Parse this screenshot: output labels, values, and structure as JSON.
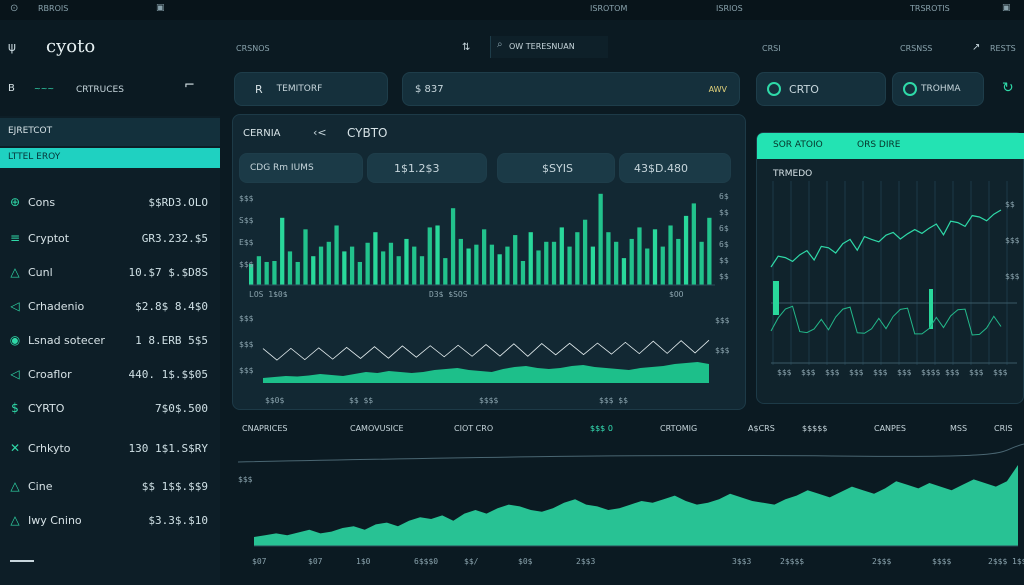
{
  "topbar": {
    "left_text": "RBROIS",
    "center_text": "ISROTOM",
    "center2_text": "ISRIOS",
    "right_text": "TRSROTIS"
  },
  "header": {
    "logo": "cyoto",
    "nav1": "CRSNOS",
    "search_text": "OW TERESNUAN",
    "right1": "CRSI",
    "right2": "CRSNSS",
    "right3": "RESTS"
  },
  "row2": {
    "pill1_label": "CRTRUCES",
    "pill2_label": "TEMITORF",
    "pill3_label": "$ 837",
    "pill3_right": "AWV",
    "pill4_label": "CRTO",
    "pill5_label": "TROHMA"
  },
  "sidebar": {
    "title": "EJRETCOT",
    "active_label": "LTTEL EROY",
    "items": [
      {
        "label": "Cons",
        "value": "$$RD3.OLO",
        "icon": "planet-icon"
      },
      {
        "label": "Cryptot",
        "value": "GR3.232.$5",
        "icon": "bars-icon"
      },
      {
        "label": "Cunl",
        "value": "10.$7 $.$D8S",
        "icon": "triangle-icon"
      },
      {
        "label": "Crhadenio",
        "value": "$2.8$ 8.4$0",
        "icon": "arrow-icon"
      },
      {
        "label": "Lsnad sotecer",
        "value": "1 8.ERB 5$5",
        "icon": "circle-icon"
      },
      {
        "label": "Croaflor",
        "value": "440. 1$.$$05",
        "icon": "arrow-icon"
      },
      {
        "label": "CYRTO",
        "value": "7$0$.500",
        "icon": "dollar-icon"
      },
      {
        "label": "Crhkyto",
        "value": "130 1$1.S$RY",
        "icon": "x-icon"
      },
      {
        "label": "Cine",
        "value": "$$ 1$$.$$9",
        "icon": "triangle-icon"
      },
      {
        "label": "Iwy Cnino",
        "value": "$3.3$.$10",
        "icon": "triangle-icon"
      }
    ]
  },
  "main_panel": {
    "tab1": "CERNIA",
    "tab2": "CYBTO",
    "stats": [
      "CDG Rm IUMS",
      "1$1.2$3",
      "$SYIS",
      "43$D.480"
    ],
    "bar_ticks_left": [
      "$$$",
      "S$$",
      "E$$",
      "$$$"
    ],
    "bar_ticks_right": [
      "6$",
      "$$",
      "6$",
      "6$",
      "$$",
      "$$"
    ],
    "bar_x_labels": [
      "LOS 1$0$",
      "D3$ $SOS",
      "$OO"
    ],
    "line_ticks_left": [
      "$$$",
      "$$$",
      "$$$"
    ],
    "line_ticks_right": [
      "$$$",
      "$$$"
    ],
    "line_x_labels": [
      "$$0$",
      "$$ $$",
      "$$$$",
      "$$$ $$"
    ]
  },
  "right_panel": {
    "header1": "SOR ATOIO",
    "header2": "ORS DIRE",
    "subtitle": "TRMEDO",
    "ticks_right": [
      "$$",
      "$$$",
      "$$$"
    ],
    "x_labels": [
      "$$$",
      "$$$",
      "$$$",
      "$$$",
      "$$$",
      "$$$",
      "$$$$",
      "$$$",
      "$$$",
      "$$$"
    ]
  },
  "bottom": {
    "legend": [
      "CNAPRICES",
      "CAMOVUSICE",
      "CIOT CRO",
      "$$$ 0",
      "CRTOMIG",
      "A$CRS",
      "$$$$$",
      "CANPES",
      "MSS",
      "CRIS"
    ],
    "y_label": "$$$",
    "x_labels": [
      "$07",
      "$07",
      "1$0",
      "6$$$0",
      "$$/",
      "$0$",
      "2$$3",
      "3$$3",
      "2$$$$",
      "2$$$",
      "$$$$",
      "2$$$",
      "1$$"
    ]
  },
  "colors": {
    "accent": "#2fe2b4",
    "accent_dark": "#14a07e",
    "panel": "#122833",
    "bg": "#0b1a22"
  },
  "chart_data": [
    {
      "type": "bar",
      "values": [
        22,
        30,
        24,
        25,
        70,
        35,
        24,
        58,
        30,
        40,
        45,
        62,
        35,
        40,
        24,
        44,
        55,
        35,
        44,
        30,
        48,
        40,
        30,
        60,
        62,
        28,
        80,
        48,
        38,
        42,
        58,
        42,
        32,
        40,
        52,
        25,
        55,
        36,
        45,
        45,
        60,
        40,
        55,
        68,
        40,
        95,
        55,
        45,
        28,
        48,
        60,
        38,
        58,
        40,
        62,
        48,
        72,
        85,
        45,
        70
      ]
    },
    {
      "type": "area",
      "series": [
        {
          "values": [
            10,
            12,
            14,
            13,
            15,
            18,
            16,
            14,
            18,
            22,
            20,
            24,
            22,
            20,
            22,
            26,
            28,
            30,
            26,
            24,
            22,
            28,
            32,
            34,
            30,
            28,
            30,
            34,
            36,
            32,
            30,
            28,
            26,
            30,
            32,
            34,
            38,
            40,
            42,
            38
          ]
        }
      ]
    },
    {
      "type": "line",
      "series": [
        {
          "values": [
            20,
            24,
            22,
            28,
            26,
            32,
            30,
            38,
            36,
            40,
            42,
            48,
            44,
            52,
            48,
            56,
            54,
            58,
            60,
            56,
            62,
            68,
            64,
            70,
            66,
            74,
            72,
            78,
            82,
            80,
            86,
            84,
            90
          ]
        }
      ]
    },
    {
      "type": "area",
      "series": [
        {
          "values": [
            10,
            12,
            14,
            12,
            15,
            18,
            14,
            16,
            20,
            22,
            18,
            24,
            26,
            22,
            28,
            32,
            30,
            34,
            28,
            36,
            40,
            36,
            42,
            46,
            44,
            40,
            38,
            42,
            48,
            52,
            46,
            44,
            40,
            42,
            46,
            50,
            48,
            52,
            56,
            50,
            46,
            48,
            52,
            58,
            54,
            50,
            48,
            46,
            52,
            56,
            62,
            58,
            54,
            60,
            66,
            62,
            58,
            64,
            72,
            68,
            64,
            70,
            66,
            62,
            68,
            74,
            70,
            66,
            72,
            90
          ]
        }
      ]
    }
  ]
}
